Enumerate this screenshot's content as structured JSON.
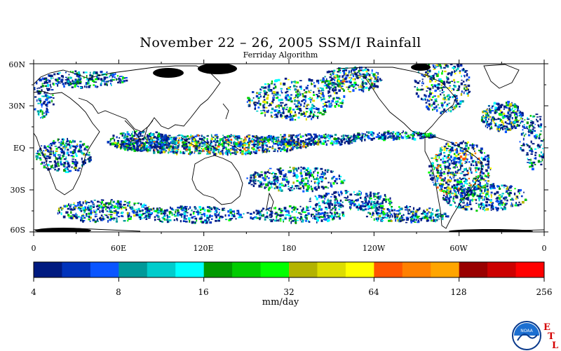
{
  "title": "November 22 – 26, 2005 SSM/I Rainfall",
  "subtitle": "Ferriday Algorithm",
  "map": {
    "lat_labels": [
      "60N",
      "30N",
      "EQ",
      "30S",
      "60S"
    ],
    "lon_labels": [
      "0",
      "60E",
      "120E",
      "180",
      "120W",
      "60W",
      "0"
    ],
    "lat_range": [
      -60,
      60
    ],
    "lon_range": [
      0,
      360
    ]
  },
  "colorbar": {
    "colors": [
      "#001a80",
      "#0033bb",
      "#0a55ff",
      "#009999",
      "#00cccc",
      "#00ffff",
      "#009900",
      "#00cc00",
      "#00ff00",
      "#b3b300",
      "#dddd00",
      "#ffff00",
      "#ff5500",
      "#ff8000",
      "#ffa500",
      "#990000",
      "#cc0000",
      "#ff0000"
    ],
    "tick_labels": [
      "4",
      "8",
      "16",
      "32",
      "64",
      "128",
      "256"
    ],
    "unit": "mm/day"
  },
  "logo": {
    "text": "NOAA",
    "letters": [
      "E",
      "T",
      "L"
    ]
  }
}
